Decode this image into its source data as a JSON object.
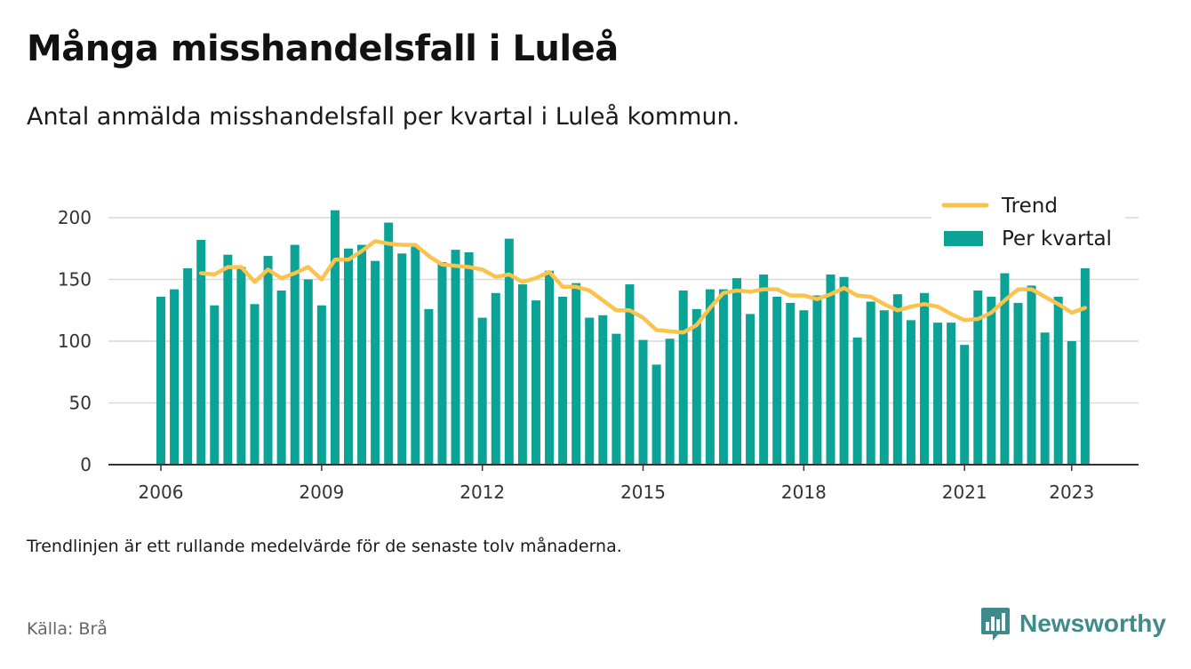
{
  "header": {
    "title": "Många misshandelsfall i Luleå",
    "subtitle": "Antal anmälda misshandelsfall per kvartal i Luleå kommun."
  },
  "footer": {
    "note": "Trendlinjen är ett rullande medelvärde för de senaste tolv månaderna.",
    "source": "Källa: Brå",
    "brand": "Newsworthy"
  },
  "colors": {
    "bar": "#0aa396",
    "trend": "#f9c34e",
    "grid": "#d9d9d9",
    "axis": "#333333",
    "brand": "#3f8a8c"
  },
  "chart_data": {
    "type": "bar",
    "x_axis": {
      "ticks": [
        2006,
        2009,
        2012,
        2015,
        2018,
        2021,
        2023
      ],
      "labels": [
        "2006",
        "2009",
        "2012",
        "2015",
        "2018",
        "2021",
        "2023"
      ],
      "start": "2006-Q1",
      "end": "2023-Q2"
    },
    "y_axis": {
      "ticks": [
        0,
        50,
        100,
        150,
        200
      ],
      "labels": [
        "0",
        "50",
        "100",
        "150",
        "200"
      ],
      "ylim": [
        0,
        210
      ]
    },
    "grid": true,
    "legend": {
      "position": "top-right",
      "entries": [
        {
          "name": "Trend",
          "kind": "line"
        },
        {
          "name": "Per kvartal",
          "kind": "bar"
        }
      ]
    },
    "series": [
      {
        "name": "Per kvartal",
        "type": "bar",
        "values": [
          136,
          142,
          159,
          182,
          129,
          170,
          160,
          130,
          169,
          141,
          178,
          150,
          129,
          206,
          175,
          178,
          165,
          196,
          171,
          177,
          126,
          164,
          174,
          172,
          119,
          139,
          183,
          146,
          133,
          157,
          136,
          147,
          119,
          121,
          106,
          146,
          101,
          81,
          102,
          141,
          126,
          142,
          142,
          151,
          122,
          154,
          136,
          131,
          125,
          137,
          154,
          152,
          103,
          132,
          125,
          138,
          117,
          139,
          115,
          115,
          97,
          141,
          136,
          155,
          131,
          145,
          107,
          136,
          100,
          159
        ]
      },
      {
        "name": "Trend",
        "type": "line",
        "start_index": 3,
        "values": [
          155,
          154,
          160,
          160,
          148,
          158,
          151,
          155,
          160,
          150,
          166,
          166,
          173,
          181,
          179,
          178,
          178,
          169,
          162,
          161,
          160,
          158,
          152,
          154,
          148,
          151,
          156,
          144,
          144,
          141,
          133,
          125,
          125,
          119,
          109,
          108,
          107,
          113,
          127,
          139,
          141,
          140,
          142,
          142,
          137,
          137,
          134,
          138,
          143,
          137,
          136,
          130,
          125,
          128,
          130,
          128,
          122,
          117,
          118,
          123,
          133,
          142,
          142,
          136,
          130,
          123,
          127
        ]
      }
    ]
  }
}
